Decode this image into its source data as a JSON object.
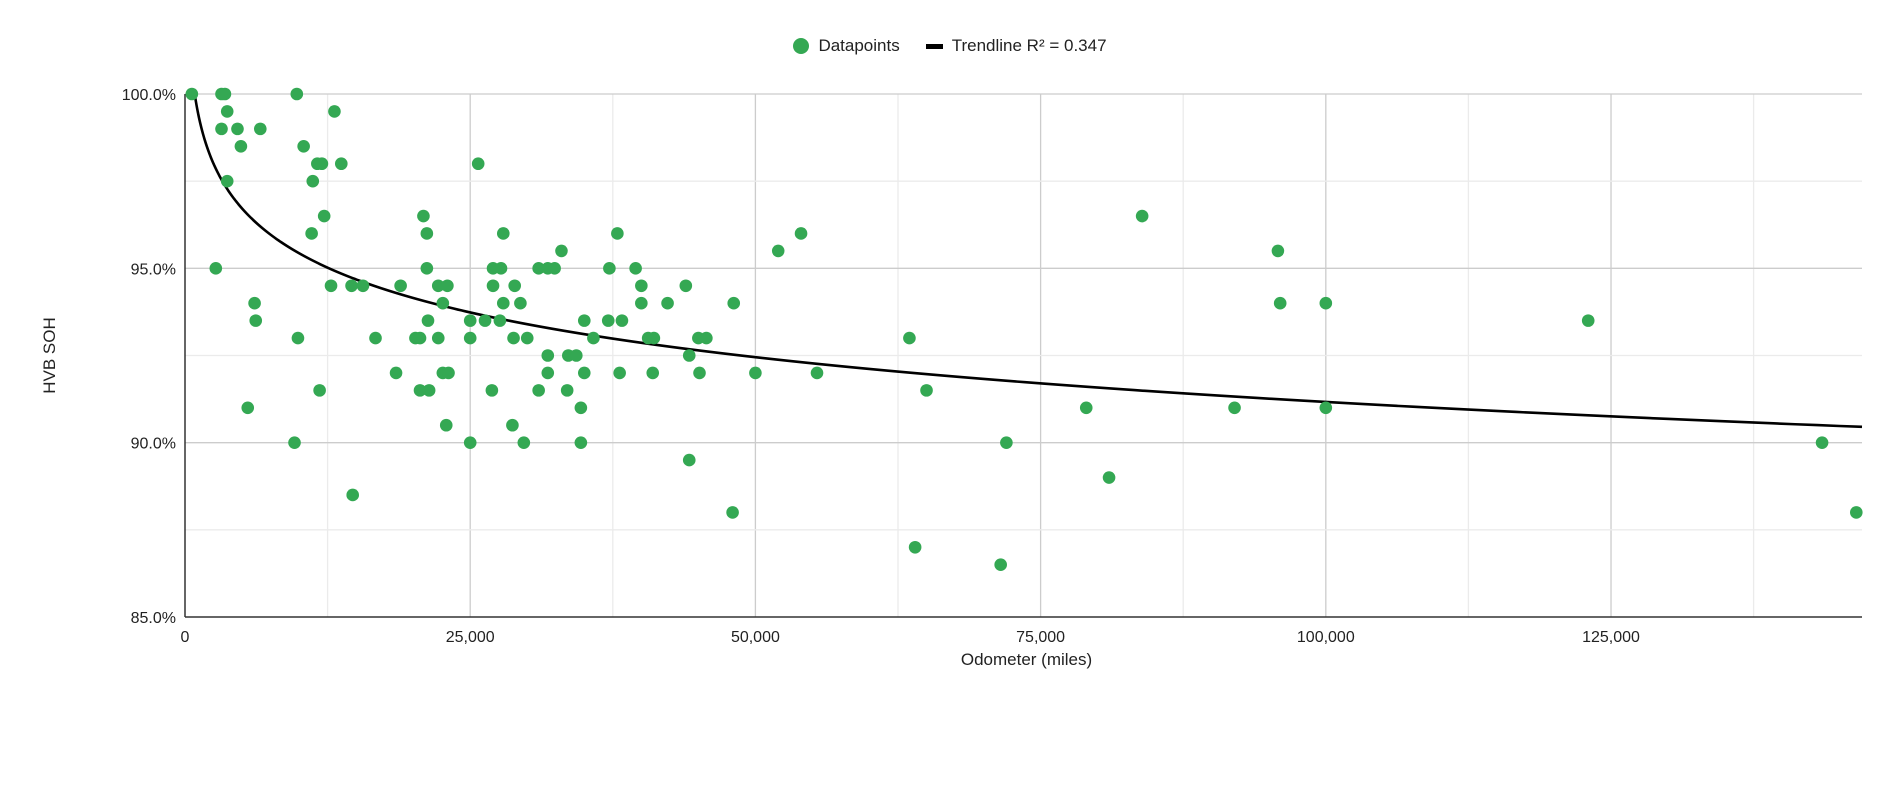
{
  "legend": {
    "datapoints_label": "Datapoints",
    "trendline_label": "Trendline R² = 0.347"
  },
  "colors": {
    "points": "#34a853",
    "trendline": "#000000",
    "grid": "#d9d9d9",
    "axis": "#333333"
  },
  "chart_data": {
    "type": "scatter",
    "title": "",
    "xlabel": "Odometer (miles)",
    "ylabel": "HVB SOH",
    "xlim": [
      0,
      147000
    ],
    "ylim": [
      85,
      100
    ],
    "x_ticks": [
      0,
      25000,
      50000,
      75000,
      100000,
      125000
    ],
    "x_tick_labels": [
      "0",
      "25,000",
      "50,000",
      "75,000",
      "100,000",
      "125,000"
    ],
    "y_ticks": [
      85,
      90,
      95,
      100
    ],
    "y_tick_labels": [
      "85.0%",
      "90.0%",
      "95.0%",
      "100.0%"
    ],
    "grid": true,
    "legend_position": "top",
    "series": [
      {
        "name": "Datapoints",
        "points": [
          [
            600,
            100
          ],
          [
            3200,
            100
          ],
          [
            3500,
            100
          ],
          [
            9800,
            100
          ],
          [
            3700,
            99.5
          ],
          [
            13100,
            99.5
          ],
          [
            3200,
            99
          ],
          [
            4600,
            99
          ],
          [
            6600,
            99
          ],
          [
            4900,
            98.5
          ],
          [
            10400,
            98.5
          ],
          [
            11600,
            98
          ],
          [
            12000,
            98
          ],
          [
            13700,
            98
          ],
          [
            25700,
            98
          ],
          [
            3700,
            97.5
          ],
          [
            11200,
            97.5
          ],
          [
            12200,
            96.5
          ],
          [
            20900,
            96.5
          ],
          [
            83900,
            96.5
          ],
          [
            11100,
            96
          ],
          [
            21200,
            96
          ],
          [
            27900,
            96
          ],
          [
            37900,
            96
          ],
          [
            54000,
            96
          ],
          [
            33000,
            95.5
          ],
          [
            52000,
            95.5
          ],
          [
            95800,
            95.5
          ],
          [
            2700,
            95
          ],
          [
            21200,
            95
          ],
          [
            27000,
            95
          ],
          [
            27700,
            95
          ],
          [
            31000,
            95
          ],
          [
            31800,
            95
          ],
          [
            32400,
            95
          ],
          [
            37200,
            95
          ],
          [
            39500,
            95
          ],
          [
            12800,
            94.5
          ],
          [
            14600,
            94.5
          ],
          [
            15600,
            94.5
          ],
          [
            18900,
            94.5
          ],
          [
            22200,
            94.5
          ],
          [
            23000,
            94.5
          ],
          [
            27000,
            94.5
          ],
          [
            28900,
            94.5
          ],
          [
            40000,
            94.5
          ],
          [
            43900,
            94.5
          ],
          [
            6100,
            94
          ],
          [
            22600,
            94
          ],
          [
            27900,
            94
          ],
          [
            29400,
            94
          ],
          [
            40000,
            94
          ],
          [
            42300,
            94
          ],
          [
            48100,
            94
          ],
          [
            96000,
            94
          ],
          [
            100000,
            94
          ],
          [
            6200,
            93.5
          ],
          [
            21300,
            93.5
          ],
          [
            25000,
            93.5
          ],
          [
            26300,
            93.5
          ],
          [
            27600,
            93.5
          ],
          [
            35000,
            93.5
          ],
          [
            37100,
            93.5
          ],
          [
            38300,
            93.5
          ],
          [
            123000,
            93.5
          ],
          [
            9900,
            93
          ],
          [
            16700,
            93
          ],
          [
            20200,
            93
          ],
          [
            20600,
            93
          ],
          [
            22200,
            93
          ],
          [
            25000,
            93
          ],
          [
            28800,
            93
          ],
          [
            30000,
            93
          ],
          [
            35800,
            93
          ],
          [
            40600,
            93
          ],
          [
            41100,
            93
          ],
          [
            45000,
            93
          ],
          [
            45700,
            93
          ],
          [
            63500,
            93
          ],
          [
            31800,
            92.5
          ],
          [
            33600,
            92.5
          ],
          [
            34300,
            92.5
          ],
          [
            44200,
            92.5
          ],
          [
            18500,
            92
          ],
          [
            22600,
            92
          ],
          [
            23100,
            92
          ],
          [
            31800,
            92
          ],
          [
            35000,
            92
          ],
          [
            38100,
            92
          ],
          [
            41000,
            92
          ],
          [
            45100,
            92
          ],
          [
            50000,
            92
          ],
          [
            55400,
            92
          ],
          [
            11800,
            91.5
          ],
          [
            20600,
            91.5
          ],
          [
            21400,
            91.5
          ],
          [
            26900,
            91.5
          ],
          [
            31000,
            91.5
          ],
          [
            33500,
            91.5
          ],
          [
            65000,
            91.5
          ],
          [
            5500,
            91
          ],
          [
            34700,
            91
          ],
          [
            79000,
            91
          ],
          [
            92000,
            91
          ],
          [
            100000,
            91
          ],
          [
            22900,
            90.5
          ],
          [
            28700,
            90.5
          ],
          [
            9600,
            90
          ],
          [
            25000,
            90
          ],
          [
            29700,
            90
          ],
          [
            34700,
            90
          ],
          [
            72000,
            90
          ],
          [
            143500,
            90
          ],
          [
            44200,
            89.5
          ],
          [
            81000,
            89
          ],
          [
            14700,
            88.5
          ],
          [
            48000,
            88
          ],
          [
            146500,
            88
          ],
          [
            64000,
            87
          ],
          [
            71500,
            86.5
          ]
        ]
      },
      {
        "name": "Trendline R² = 0.347",
        "model": "logarithmic",
        "x_range": [
          650,
          147000
        ]
      }
    ]
  }
}
